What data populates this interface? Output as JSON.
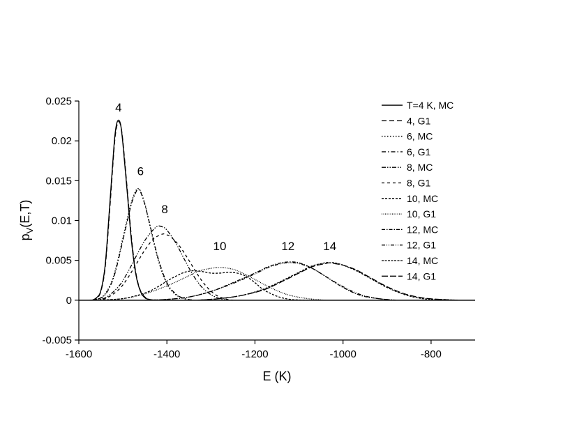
{
  "chart_data": {
    "type": "line",
    "title": "",
    "xlabel": "E (K)",
    "ylabel": "p",
    "ylabel_sub": "V",
    "ylabel_suffix": "(E,T)",
    "xlim": [
      -1600,
      -700
    ],
    "ylim": [
      -0.005,
      0.025
    ],
    "x_ticks": [
      -1600,
      -1400,
      -1200,
      -1000,
      -800
    ],
    "x_tick_labels": [
      "-1600",
      "-1400",
      "-1200",
      "-1000",
      "-800"
    ],
    "y_ticks": [
      -0.005,
      0,
      0.005,
      0.01,
      0.015,
      0.02,
      0.025
    ],
    "y_tick_labels": [
      "-0.005",
      "0",
      "0.005",
      "0.01",
      "0.015",
      "0.02",
      "0.025"
    ],
    "grid": false,
    "legend_position": "top-right",
    "zero_line": 0,
    "peak_labels": [
      {
        "text": "4",
        "x": -1510,
        "y": 0.0237
      },
      {
        "text": "6",
        "x": -1460,
        "y": 0.0157
      },
      {
        "text": "8",
        "x": -1405,
        "y": 0.0109
      },
      {
        "text": "10",
        "x": -1280,
        "y": 0.0063
      },
      {
        "text": "12",
        "x": -1125,
        "y": 0.0063
      },
      {
        "text": "14",
        "x": -1030,
        "y": 0.0063
      }
    ],
    "series": [
      {
        "name": "T=4 K, MC",
        "dash": "",
        "width": 1.4,
        "x": [
          -1570,
          -1560,
          -1550,
          -1540,
          -1530,
          -1520,
          -1515,
          -1510,
          -1505,
          -1500,
          -1490,
          -1480,
          -1470,
          -1460,
          -1450,
          -1440,
          -1430
        ],
        "y": [
          0,
          0.0003,
          0.0012,
          0.0045,
          0.0118,
          0.0195,
          0.0219,
          0.0226,
          0.022,
          0.0197,
          0.0135,
          0.0072,
          0.0031,
          0.0011,
          0.0003,
          0.0001,
          0
        ]
      },
      {
        "name": "4, G1",
        "dash": "7 4",
        "width": 1.3,
        "x": [
          -1570,
          -1560,
          -1550,
          -1540,
          -1530,
          -1520,
          -1515,
          -1510,
          -1505,
          -1500,
          -1490,
          -1480,
          -1470,
          -1460,
          -1450,
          -1440,
          -1430
        ],
        "y": [
          0,
          0.0002,
          0.0011,
          0.0042,
          0.0112,
          0.019,
          0.0215,
          0.0224,
          0.0219,
          0.02,
          0.0139,
          0.0076,
          0.0033,
          0.0012,
          0.0004,
          0.0001,
          0
        ]
      },
      {
        "name": "6, MC",
        "dash": "1.5 2.5",
        "width": 1.4,
        "x": [
          -1575,
          -1560,
          -1540,
          -1520,
          -1500,
          -1490,
          -1480,
          -1470,
          -1465,
          -1460,
          -1450,
          -1440,
          -1420,
          -1400,
          -1380,
          -1360,
          -1340
        ],
        "y": [
          0,
          0.0001,
          0.0008,
          0.0032,
          0.0078,
          0.0102,
          0.0124,
          0.0138,
          0.014,
          0.0137,
          0.0121,
          0.0097,
          0.0051,
          0.002,
          0.0007,
          0.0002,
          0
        ]
      },
      {
        "name": "6, G1",
        "dash": "6 3 1.5 3",
        "width": 1.3,
        "x": [
          -1575,
          -1560,
          -1540,
          -1520,
          -1500,
          -1490,
          -1480,
          -1470,
          -1465,
          -1460,
          -1450,
          -1440,
          -1420,
          -1400,
          -1380,
          -1360,
          -1340
        ],
        "y": [
          0,
          0.0001,
          0.0007,
          0.003,
          0.0075,
          0.0099,
          0.0122,
          0.0136,
          0.0139,
          0.0136,
          0.012,
          0.0098,
          0.0053,
          0.0022,
          0.0008,
          0.0002,
          0
        ]
      },
      {
        "name": "8, MC",
        "dash": "6 2 1.5 2 1.5 2",
        "width": 1.3,
        "x": [
          -1570,
          -1540,
          -1510,
          -1490,
          -1470,
          -1450,
          -1430,
          -1420,
          -1410,
          -1400,
          -1380,
          -1360,
          -1340,
          -1320,
          -1300,
          -1280,
          -1260
        ],
        "y": [
          0,
          0.0003,
          0.0017,
          0.0034,
          0.0055,
          0.0075,
          0.0089,
          0.0093,
          0.0092,
          0.0088,
          0.0072,
          0.0051,
          0.0031,
          0.0016,
          0.0007,
          0.0002,
          0
        ]
      },
      {
        "name": "8, G1",
        "dash": "4 4",
        "width": 1.3,
        "x": [
          -1570,
          -1540,
          -1510,
          -1490,
          -1470,
          -1450,
          -1430,
          -1410,
          -1400,
          -1390,
          -1370,
          -1350,
          -1330,
          -1310,
          -1290,
          -1270,
          -1250
        ],
        "y": [
          0,
          0.0002,
          0.0013,
          0.0027,
          0.0045,
          0.0063,
          0.0077,
          0.0083,
          0.0082,
          0.0079,
          0.0067,
          0.005,
          0.0032,
          0.0017,
          0.0007,
          0.0002,
          0
        ]
      },
      {
        "name": "10, MC",
        "dash": "3 2",
        "width": 1.3,
        "x": [
          -1560,
          -1500,
          -1450,
          -1420,
          -1400,
          -1380,
          -1360,
          -1340,
          -1320,
          -1300,
          -1280,
          -1260,
          -1240,
          -1220,
          -1200,
          -1180,
          -1150,
          -1120,
          -1080
        ],
        "y": [
          0,
          0.0002,
          0.0009,
          0.0017,
          0.0024,
          0.003,
          0.0035,
          0.0037,
          0.0036,
          0.0034,
          0.0034,
          0.0035,
          0.0034,
          0.003,
          0.0022,
          0.0013,
          0.0005,
          0.0001,
          0
        ]
      },
      {
        "name": "10, G1",
        "dash": "1 1.5",
        "width": 1.3,
        "x": [
          -1560,
          -1500,
          -1450,
          -1400,
          -1360,
          -1330,
          -1300,
          -1280,
          -1260,
          -1240,
          -1210,
          -1180,
          -1150,
          -1120,
          -1080,
          -1040
        ],
        "y": [
          0,
          0.0002,
          0.0008,
          0.0018,
          0.0028,
          0.0036,
          0.004,
          0.0041,
          0.004,
          0.0037,
          0.0029,
          0.002,
          0.0012,
          0.0006,
          0.0002,
          0
        ]
      },
      {
        "name": "12, MC",
        "dash": "5 2 1.5 2",
        "width": 1.3,
        "x": [
          -1450,
          -1400,
          -1350,
          -1300,
          -1250,
          -1200,
          -1170,
          -1140,
          -1120,
          -1100,
          -1070,
          -1040,
          -1000,
          -960,
          -920,
          -880
        ],
        "y": [
          0,
          0.0001,
          0.0004,
          0.0011,
          0.0022,
          0.0034,
          0.0042,
          0.0047,
          0.0048,
          0.0047,
          0.004,
          0.003,
          0.0016,
          0.0006,
          0.0002,
          0
        ]
      },
      {
        "name": "12, G1",
        "dash": "5 2 1 2 1 2",
        "width": 1.3,
        "x": [
          -1450,
          -1400,
          -1350,
          -1300,
          -1250,
          -1200,
          -1170,
          -1140,
          -1120,
          -1100,
          -1070,
          -1040,
          -1000,
          -960,
          -920,
          -880
        ],
        "y": [
          0,
          0.0001,
          0.0004,
          0.0011,
          0.0021,
          0.0033,
          0.0041,
          0.0046,
          0.0047,
          0.0046,
          0.004,
          0.003,
          0.0017,
          0.0007,
          0.0002,
          0
        ]
      },
      {
        "name": "14, MC",
        "dash": "3 1.5",
        "width": 1.3,
        "x": [
          -1330,
          -1280,
          -1230,
          -1180,
          -1140,
          -1100,
          -1070,
          -1040,
          -1030,
          -1020,
          -1000,
          -970,
          -940,
          -900,
          -860,
          -820,
          -780,
          -740
        ],
        "y": [
          0,
          0.0002,
          0.0006,
          0.0014,
          0.0024,
          0.0035,
          0.0043,
          0.0047,
          0.0047,
          0.0047,
          0.0044,
          0.0037,
          0.0028,
          0.0016,
          0.0007,
          0.0002,
          0.0001,
          0
        ]
      },
      {
        "name": "14, G1",
        "dash": "9 3",
        "width": 1.3,
        "x": [
          -1330,
          -1280,
          -1230,
          -1180,
          -1140,
          -1100,
          -1070,
          -1040,
          -1030,
          -1020,
          -1000,
          -970,
          -940,
          -900,
          -860,
          -820,
          -780,
          -740
        ],
        "y": [
          0,
          0.0002,
          0.0006,
          0.0013,
          0.0023,
          0.0034,
          0.0042,
          0.0046,
          0.0047,
          0.0046,
          0.0044,
          0.0038,
          0.0029,
          0.0017,
          0.0008,
          0.0003,
          0.0001,
          0
        ]
      }
    ]
  }
}
